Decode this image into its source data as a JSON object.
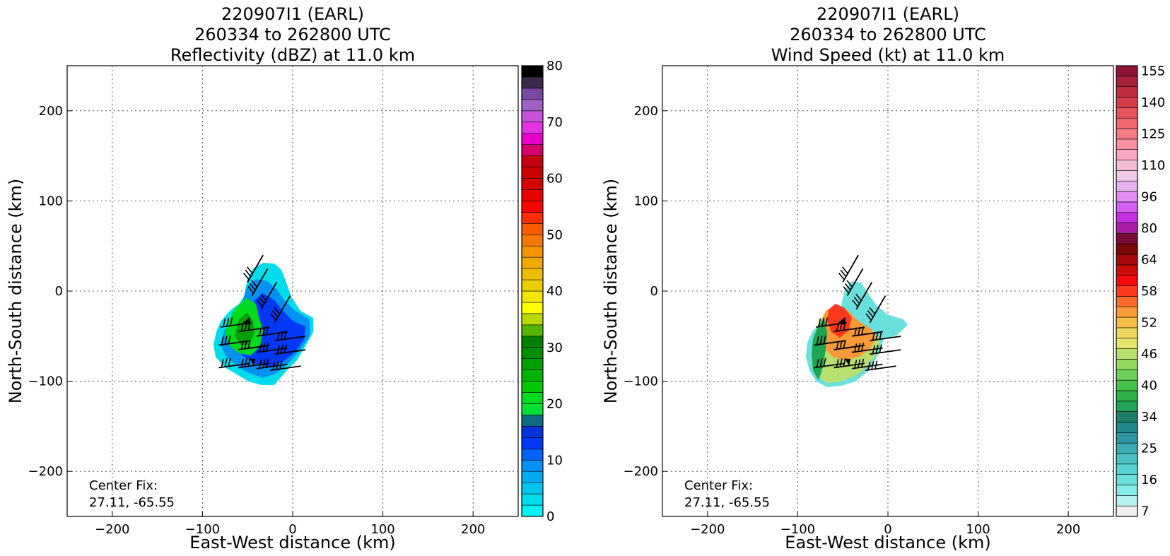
{
  "colors": {
    "reflectivity_bins": [
      "#00f3f3",
      "#00dcea",
      "#00c4ec",
      "#00aaf0",
      "#0091f2",
      "#0061f6",
      "#0038f8",
      "#0033dc",
      "#0e6c82",
      "#00e035",
      "#00da1f",
      "#00c800",
      "#00b300",
      "#00a000",
      "#008d00",
      "#008000",
      "#57b400",
      "#b9d900",
      "#ffff00",
      "#f3e600",
      "#ead000",
      "#edbd00",
      "#f1a800",
      "#f59200",
      "#f77800",
      "#fa5a00",
      "#ff3000",
      "#ff0000",
      "#e60000",
      "#d60000",
      "#cb0000",
      "#c40010",
      "#d7006a",
      "#e600cc",
      "#e234e2",
      "#c653d6",
      "#a162c8",
      "#7a4aa2",
      "#3d2a4a",
      "#000000"
    ],
    "windspeed_bins": [
      "#eeeeee",
      "#b8f2ee",
      "#86eae6",
      "#6ae0dc",
      "#58d4d4",
      "#4ac2c6",
      "#3aaab4",
      "#2e96a2",
      "#23898e",
      "#1e7e6a",
      "#1ea452",
      "#2db24a",
      "#46c24a",
      "#6ed058",
      "#92d860",
      "#b8e070",
      "#e4e66c",
      "#f0d660",
      "#f7be4a",
      "#fa9a36",
      "#fc6a2a",
      "#fd3a1e",
      "#f70c0c",
      "#cf0c0c",
      "#a60a0a",
      "#7a0808",
      "#7a0c3a",
      "#aa1ea6",
      "#c42ee4",
      "#d65ef0",
      "#e08cf2",
      "#e8b2f0",
      "#f0c8e8",
      "#f6bcd6",
      "#f8a8c0",
      "#f890a0",
      "#f67a84",
      "#f26670",
      "#e85258",
      "#d83c48",
      "#c22c40",
      "#a8203a",
      "#901438"
    ],
    "barb": "#000000",
    "grid": "#555555"
  },
  "chart_data": [
    {
      "type": "heatmap",
      "title_lines": [
        "220907I1 (EARL)",
        "260334 to 262800 UTC",
        "Reflectivity (dBZ) at 11.0 km"
      ],
      "xlabel": "East-West distance (km)",
      "ylabel": "North-South distance (km)",
      "xlim": [
        -250,
        250
      ],
      "ylim": [
        -250,
        250
      ],
      "x_ticks": [
        -200,
        -100,
        0,
        100,
        200
      ],
      "y_ticks": [
        -200,
        -100,
        0,
        100,
        200
      ],
      "x_tick_labels": [
        "−200",
        "−100",
        "0",
        "100",
        "200"
      ],
      "y_tick_labels": [
        "−200",
        "−100",
        "0",
        "100",
        "200"
      ],
      "grid": true,
      "colorbar": {
        "min": 0,
        "max": 80,
        "bins": 40,
        "tick_values": [
          0,
          10,
          20,
          30,
          40,
          50,
          60,
          70,
          80
        ],
        "tick_labels": [
          "0",
          "10",
          "20",
          "30",
          "40",
          "50",
          "60",
          "70",
          "80"
        ],
        "palette": "reflectivity_bins"
      },
      "center_fix_label": "Center Fix:",
      "center_fix_coords": "27.11, -65.55"
    },
    {
      "type": "heatmap",
      "title_lines": [
        "220907I1 (EARL)",
        "260334 to 262800 UTC",
        "Wind Speed (kt) at 11.0 km"
      ],
      "xlabel": "East-West distance (km)",
      "ylabel": "North-South distance (km)",
      "xlim": [
        -250,
        250
      ],
      "ylim": [
        -250,
        250
      ],
      "x_ticks": [
        -200,
        -100,
        0,
        100,
        200
      ],
      "y_ticks": [
        -200,
        -100,
        0,
        100,
        200
      ],
      "x_tick_labels": [
        "−200",
        "−100",
        "0",
        "100",
        "200"
      ],
      "y_tick_labels": [
        "−200",
        "−100",
        "0",
        "100",
        "200"
      ],
      "grid": true,
      "colorbar": {
        "bins": 43,
        "tick_bins": [
          1,
          4,
          7,
          10,
          13,
          16,
          19,
          22,
          25,
          28,
          31,
          34,
          37,
          40,
          43
        ],
        "tick_labels": [
          "7",
          "16",
          "25",
          "34",
          "40",
          "46",
          "52",
          "58",
          "64",
          "80",
          "96",
          "110",
          "125",
          "140",
          "155"
        ],
        "palette": "windspeed_bins"
      },
      "center_fix_label": "Center Fix:",
      "center_fix_coords": "27.11, -65.55"
    }
  ]
}
